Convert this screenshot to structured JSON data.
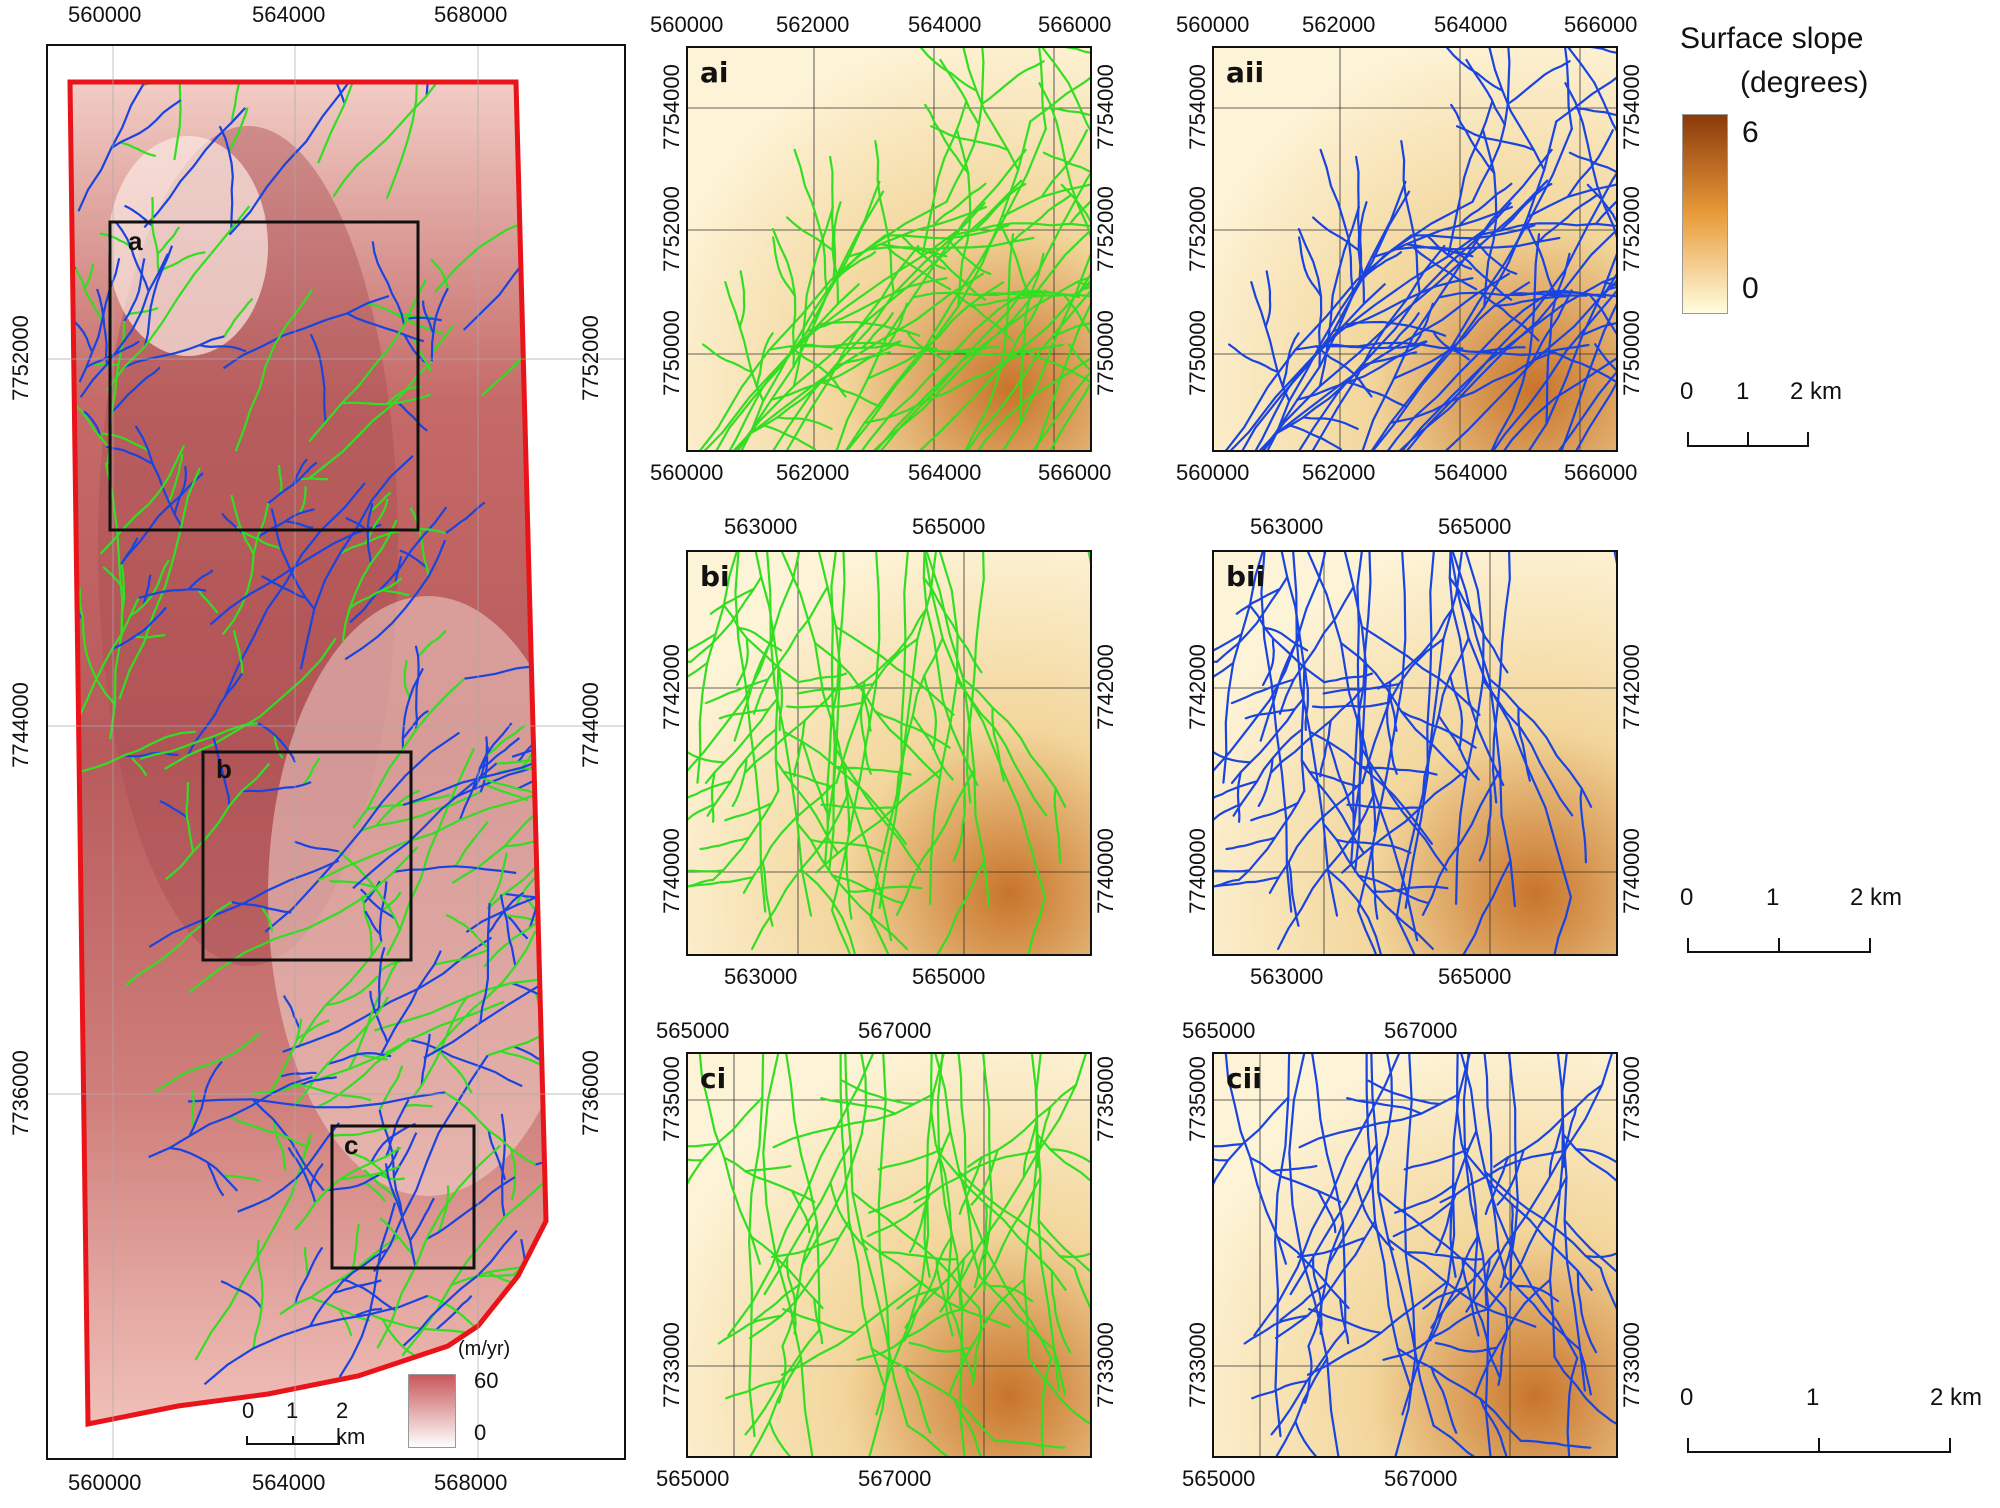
{
  "main_map": {
    "x_ticks": [
      "560000",
      "564000",
      "568000"
    ],
    "y_ticks": [
      "7752000",
      "7744000",
      "7736000"
    ],
    "boxes": [
      "a",
      "b",
      "c"
    ],
    "scale": {
      "labels": [
        "0",
        "1",
        "2 km"
      ]
    },
    "legend": {
      "title": "(m/yr)",
      "max": "60",
      "min": "0",
      "color_high": "#c8575a",
      "color_low": "#ffffff"
    },
    "outline_color": "#e8141a"
  },
  "panels": [
    {
      "id": "ai",
      "label": "ai",
      "x_ticks": [
        "560000",
        "562000",
        "564000",
        "566000"
      ],
      "y_ticks": [
        "7754000",
        "7752000",
        "7750000"
      ],
      "line_color": "#33dd22"
    },
    {
      "id": "aii",
      "label": "aii",
      "x_ticks": [
        "560000",
        "562000",
        "564000",
        "566000"
      ],
      "y_ticks": [
        "7754000",
        "7752000",
        "7750000"
      ],
      "line_color": "#1a44e0"
    },
    {
      "id": "bi",
      "label": "bi",
      "x_ticks": [
        "563000",
        "565000"
      ],
      "y_ticks": [
        "7742000",
        "7740000"
      ],
      "line_color": "#33dd22"
    },
    {
      "id": "bii",
      "label": "bii",
      "x_ticks": [
        "563000",
        "565000"
      ],
      "y_ticks": [
        "7742000",
        "7740000"
      ],
      "line_color": "#1a44e0"
    },
    {
      "id": "ci",
      "label": "ci",
      "x_ticks": [
        "565000",
        "567000"
      ],
      "y_ticks": [
        "7735000",
        "7733000"
      ],
      "line_color": "#33dd22"
    },
    {
      "id": "cii",
      "label": "cii",
      "x_ticks": [
        "565000",
        "567000"
      ],
      "y_ticks": [
        "7735000",
        "7733000"
      ],
      "line_color": "#1a44e0"
    }
  ],
  "slope_legend": {
    "title_line1": "Surface slope",
    "title_line2": "(degrees)",
    "max": "6",
    "min": "0",
    "color_high": "#8b3a0a",
    "color_mid": "#e99a3a",
    "color_low": "#fffde0"
  },
  "scales": [
    {
      "labels": [
        "0",
        "1",
        "2 km"
      ]
    },
    {
      "labels": [
        "0",
        "1",
        "2 km"
      ]
    },
    {
      "labels": [
        "0",
        "1",
        "2 km"
      ]
    }
  ]
}
